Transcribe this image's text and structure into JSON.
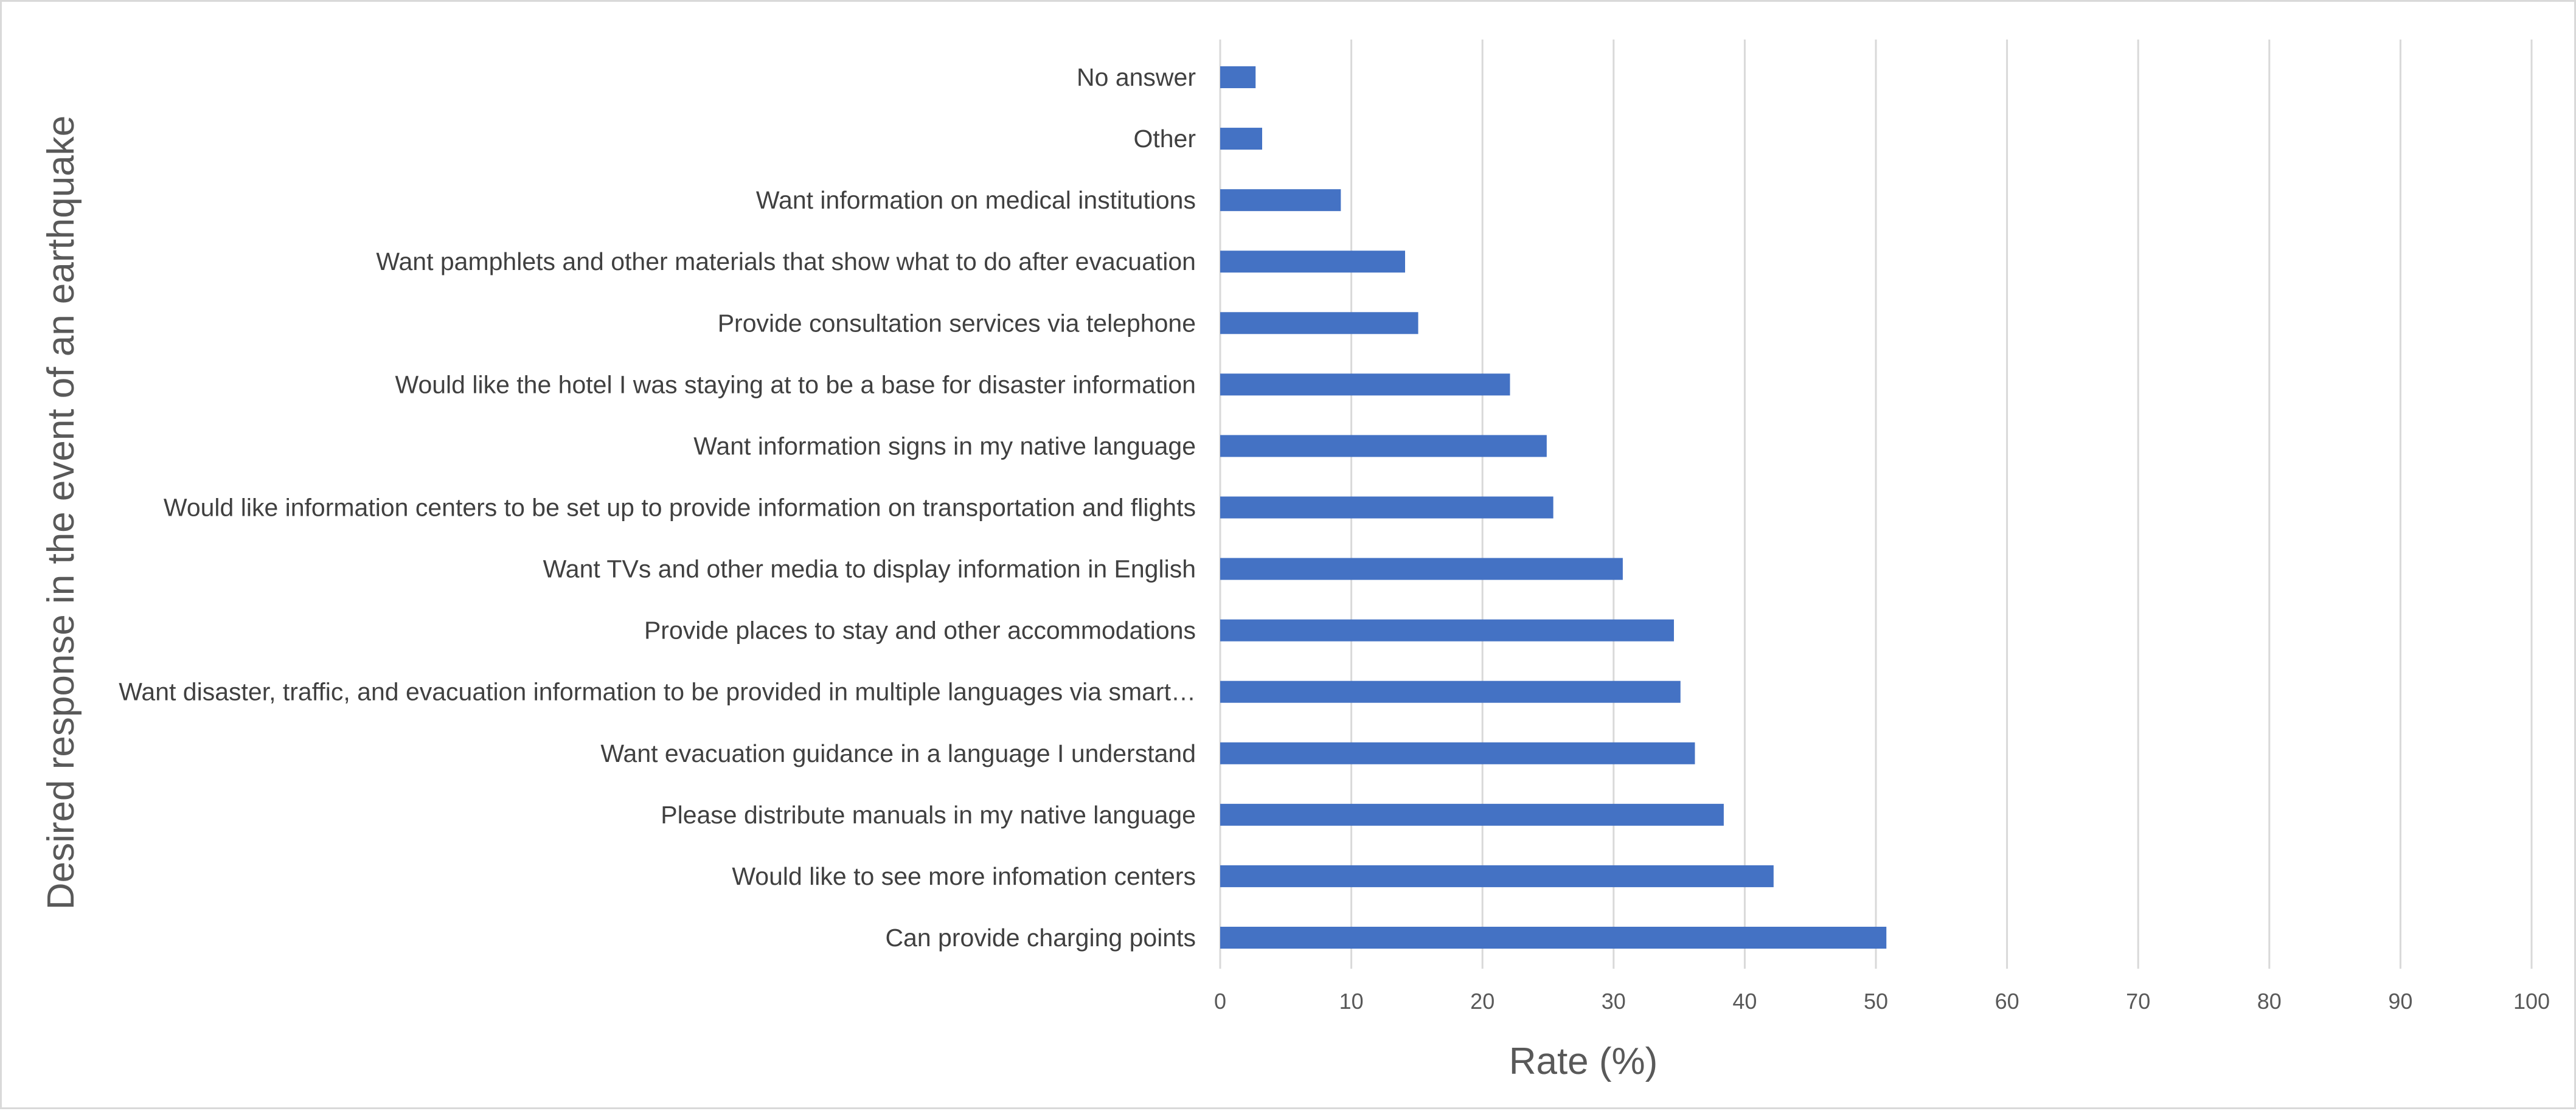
{
  "chart_data": {
    "type": "bar",
    "orientation": "horizontal",
    "title": "",
    "xlabel": "Rate (%)",
    "ylabel": "Desired response in the event of an earthquake",
    "xlim": [
      0,
      100
    ],
    "x_ticks": [
      0,
      10,
      20,
      30,
      40,
      50,
      60,
      70,
      80,
      90,
      100
    ],
    "grid": "vertical gridlines on",
    "legend": "none",
    "bar_color": "#4472C4",
    "gridline_color": "#d9d9d9",
    "categories": [
      "Can provide charging points",
      "Would like to see more infomation centers",
      "Please distribute manuals in my native language",
      "Want evacuation guidance in a language I understand",
      "Want disaster, traffic, and evacuation information to be provided in multiple languages via smart…",
      "Provide places to stay and other accommodations",
      "Want TVs and other media to display information in English",
      "Would like information centers to be set up to provide information on transportation and flights",
      "Want information signs in my native language",
      "Would like the hotel I was staying at to be a base for disaster information",
      "Provide consultation services via telephone",
      "Want pamphlets and other materials that show what to do after evacuation",
      "Want information on medical institutions",
      "Other",
      "No answer"
    ],
    "values": [
      50.8,
      42.2,
      38.4,
      36.2,
      35.1,
      34.6,
      30.7,
      25.4,
      24.9,
      22.1,
      15.1,
      14.1,
      9.2,
      3.2,
      2.7
    ]
  }
}
